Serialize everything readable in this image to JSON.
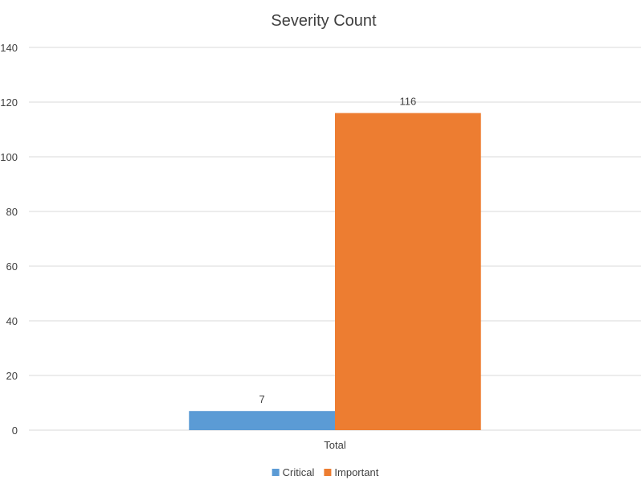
{
  "chart_data": {
    "type": "bar",
    "title": "Severity Count",
    "xlabel": "",
    "ylabel": "",
    "categories": [
      "Total"
    ],
    "series": [
      {
        "name": "Critical",
        "values": [
          7
        ],
        "color": "#5b9bd5"
      },
      {
        "name": "Important",
        "values": [
          116
        ],
        "color": "#ed7d31"
      }
    ],
    "ylim": [
      0,
      140
    ],
    "yticks": [
      0,
      20,
      40,
      60,
      80,
      100,
      120,
      140
    ],
    "grid": true,
    "legend": "bottom",
    "data_labels": true
  }
}
